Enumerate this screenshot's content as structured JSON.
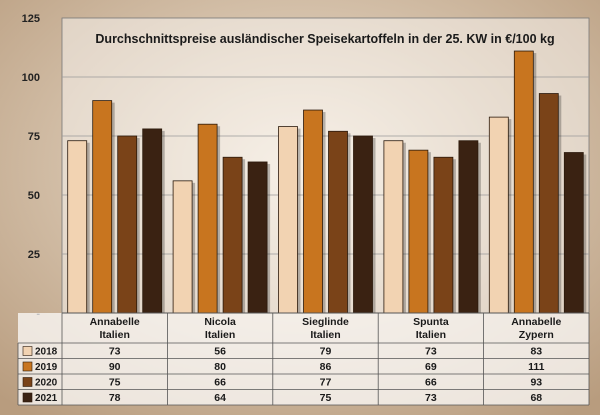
{
  "colors": {
    "2018": "#f2d3b2",
    "2019": "#c8751f",
    "2020": "#7a4318",
    "2021": "#3a2212"
  },
  "chart_data": {
    "type": "bar",
    "title": "Durchschnittspreise ausländischer Speisekartoffeln in der 25. KW in €/100 kg",
    "categories": [
      [
        "Annabelle",
        "Italien"
      ],
      [
        "Nicola",
        "Italien"
      ],
      [
        "Sieglinde",
        "Italien"
      ],
      [
        "Spunta",
        "Italien"
      ],
      [
        "Annabelle",
        "Zypern"
      ]
    ],
    "series": [
      {
        "name": "2018",
        "values": [
          73,
          56,
          79,
          73,
          83
        ]
      },
      {
        "name": "2019",
        "values": [
          90,
          80,
          86,
          69,
          111
        ]
      },
      {
        "name": "2020",
        "values": [
          75,
          66,
          77,
          66,
          93
        ]
      },
      {
        "name": "2021",
        "values": [
          78,
          64,
          75,
          73,
          68
        ]
      }
    ],
    "yticks": [
      "-",
      "25",
      "50",
      "75",
      "100",
      "125"
    ],
    "ylim": [
      0,
      125
    ],
    "grid": true,
    "legend": "table-left"
  }
}
